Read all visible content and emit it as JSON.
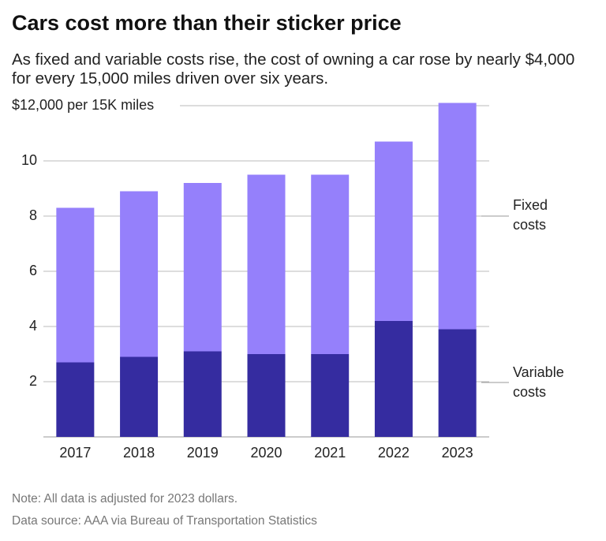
{
  "chart_data": {
    "type": "stacked-bar",
    "title": "Cars cost more than their sticker price",
    "subtitle": "As fixed and variable costs rise, the cost of owning a car rose by nearly $4,000 for every 15,000 miles driven over six years.",
    "categories": [
      "2017",
      "2018",
      "2019",
      "2020",
      "2021",
      "2022",
      "2023"
    ],
    "series": [
      {
        "name": "Variable costs",
        "color": "#352ca0",
        "values": [
          2.7,
          2.9,
          3.1,
          3.0,
          3.0,
          4.2,
          3.9
        ]
      },
      {
        "name": "Fixed costs",
        "color": "#9580fb",
        "values": [
          5.6,
          6.0,
          6.1,
          6.5,
          6.5,
          6.5,
          8.2
        ]
      }
    ],
    "ylim": [
      0,
      12.2
    ],
    "yticks": [
      2,
      4,
      6,
      8,
      10,
      {
        "value": 12,
        "label": "$12,000 per 15K miles"
      }
    ],
    "grid": true,
    "notes": [
      "Note: All data is adjusted for 2023 dollars.",
      "Data source: AAA via Bureau of Transportation Statistics"
    ]
  }
}
